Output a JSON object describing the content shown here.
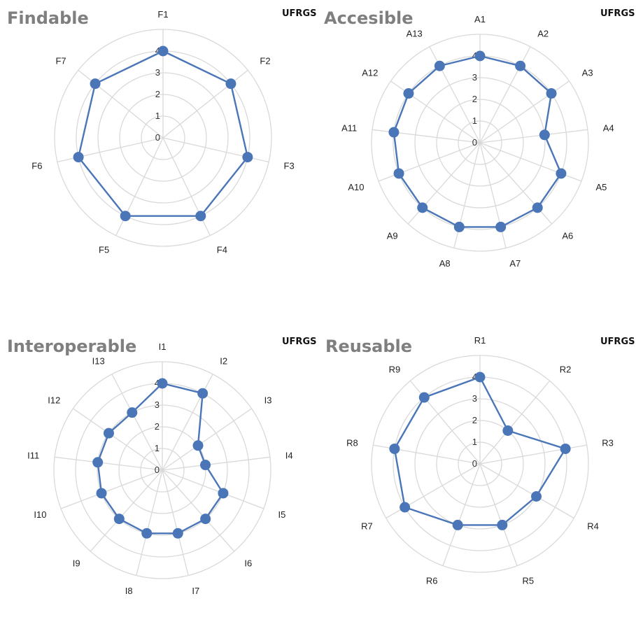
{
  "colors": {
    "series": "#4a76b8",
    "grid": "#d9d9d9",
    "title": "#7f7f7f",
    "text": "#222222"
  },
  "chart_data": [
    {
      "type": "radar",
      "title": "Findable",
      "tag": "UFRGS",
      "categories": [
        "F1",
        "F2",
        "F3",
        "F4",
        "F5",
        "F6",
        "F7"
      ],
      "values": [
        4,
        4,
        4,
        4,
        4,
        4,
        4
      ],
      "ylim": [
        0,
        4
      ],
      "ticks": [
        "0",
        "1",
        "2",
        "3",
        "4"
      ],
      "grid": true
    },
    {
      "type": "radar",
      "title": "Accesible",
      "tag": "UFRGS",
      "categories": [
        "A1",
        "A2",
        "A3",
        "A4",
        "A5",
        "A6",
        "A7",
        "A8",
        "A9",
        "A10",
        "A11",
        "A12",
        "A13"
      ],
      "values": [
        4,
        4,
        4,
        3,
        4,
        4,
        4,
        4,
        4,
        4,
        4,
        4,
        4
      ],
      "ylim": [
        0,
        4
      ],
      "ticks": [
        "0",
        "1",
        "2",
        "3",
        "4"
      ],
      "grid": true
    },
    {
      "type": "radar",
      "title": "Interoperable",
      "tag": "UFRGS",
      "categories": [
        "I1",
        "I2",
        "I3",
        "I4",
        "I5",
        "I6",
        "I7",
        "I8",
        "I9",
        "I10",
        "I11",
        "I12",
        "I13"
      ],
      "values": [
        4,
        4,
        2,
        2,
        3,
        3,
        3,
        3,
        3,
        3,
        3,
        3,
        3
      ],
      "ylim": [
        0,
        4
      ],
      "ticks": [
        "0",
        "1",
        "2",
        "3",
        "4"
      ],
      "grid": true
    },
    {
      "type": "radar",
      "title": "Reusable",
      "tag": "UFRGS",
      "categories": [
        "R1",
        "R2",
        "R3",
        "R4",
        "R5",
        "R6",
        "R7",
        "R8",
        "R9"
      ],
      "values": [
        4,
        2,
        4,
        3,
        3,
        3,
        4,
        4,
        4
      ],
      "ylim": [
        0,
        4
      ],
      "ticks": [
        "0",
        "1",
        "2",
        "3",
        "4"
      ],
      "grid": true
    }
  ]
}
